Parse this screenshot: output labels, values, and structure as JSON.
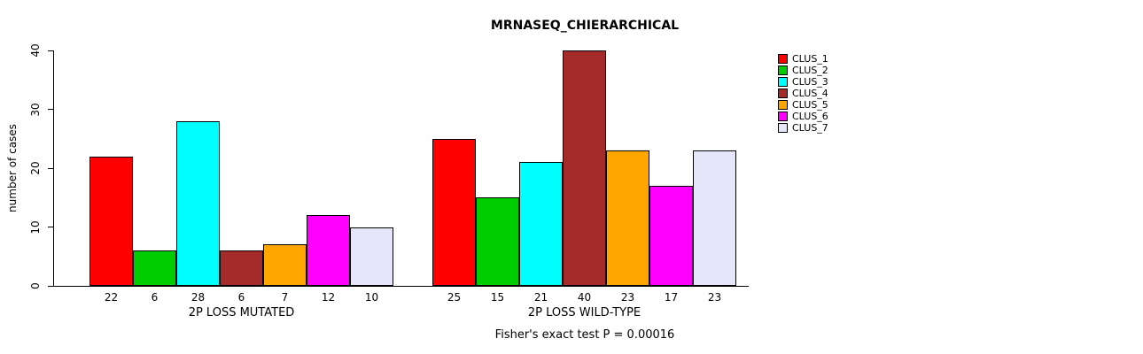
{
  "title": "MRNASEQ_CHIERARCHICAL",
  "chart_data": {
    "type": "bar",
    "title": "MRNASEQ_CHIERARCHICAL",
    "xlabel": "",
    "ylabel": "number of cases",
    "ylim": [
      0,
      40
    ],
    "yticks": [
      0,
      10,
      20,
      30,
      40
    ],
    "grid": false,
    "legend_position": "right",
    "categories": [
      "CLUS_1",
      "CLUS_2",
      "CLUS_3",
      "CLUS_4",
      "CLUS_5",
      "CLUS_6",
      "CLUS_7"
    ],
    "groups": [
      {
        "label": "2P LOSS MUTATED",
        "values": [
          22,
          6,
          28,
          6,
          7,
          12,
          10
        ]
      },
      {
        "label": "2P LOSS WILD-TYPE",
        "values": [
          25,
          15,
          21,
          40,
          23,
          17,
          23
        ]
      }
    ],
    "series_colors": [
      "#FF0000",
      "#00CD00",
      "#00FFFF",
      "#A52A2A",
      "#FFA500",
      "#FF00FF",
      "#E6E6FA"
    ],
    "legend": [
      {
        "label": "CLUS_1",
        "color": "#FF0000"
      },
      {
        "label": "CLUS_2",
        "color": "#00CD00"
      },
      {
        "label": "CLUS_3",
        "color": "#00FFFF"
      },
      {
        "label": "CLUS_4",
        "color": "#A52A2A"
      },
      {
        "label": "CLUS_5",
        "color": "#FFA500"
      },
      {
        "label": "CLUS_6",
        "color": "#FF00FF"
      },
      {
        "label": "CLUS_7",
        "color": "#E6E6FA"
      }
    ],
    "annotation": "Fisher's exact test P = 0.00016"
  }
}
